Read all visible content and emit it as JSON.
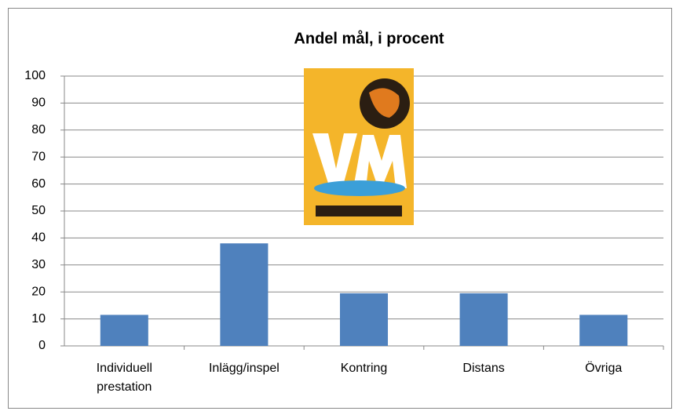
{
  "chart_data": {
    "type": "bar",
    "title": "Andel mål, i procent",
    "categories": [
      "Individuell prestation",
      "Inlägg/inspel",
      "Kontring",
      "Distans",
      "Övriga"
    ],
    "values": [
      11.5,
      38,
      19.5,
      19.5,
      11.5
    ],
    "color": "#4f81bd",
    "ylim": [
      0,
      100
    ],
    "yticks": [
      0,
      10,
      20,
      30,
      40,
      50,
      60,
      70,
      80,
      90,
      100
    ],
    "grid": true
  }
}
